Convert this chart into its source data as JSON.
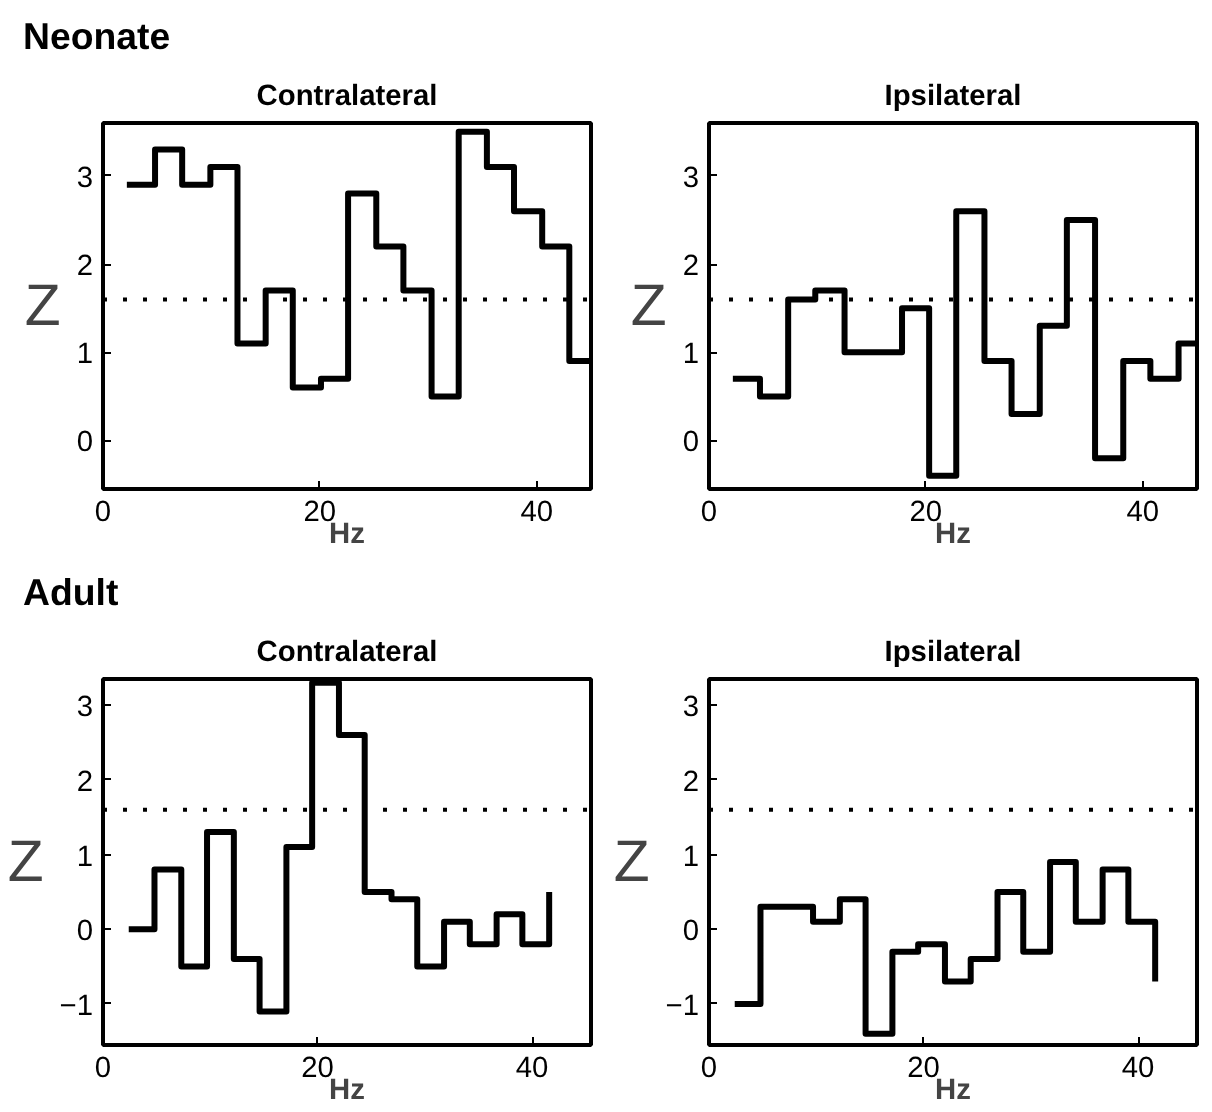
{
  "chart_data": [
    {
      "type": "step",
      "title": "Contralateral",
      "annotations": [
        "Neonate"
      ],
      "xlabel": "Hz",
      "ylabel": "Z",
      "xlim": [
        0,
        45
      ],
      "xticks": [
        0,
        20,
        40
      ],
      "ylim": [
        -0.55,
        3.6
      ],
      "yticks": [
        0,
        1,
        2,
        3
      ],
      "grid": false,
      "ref_lines": [
        {
          "axis": "y",
          "value": 1.6,
          "line_style": "dotted",
          "color": "#000000"
        }
      ],
      "series": [
        {
          "color": "#000000",
          "x": [
            2.2,
            4.8,
            7.3,
            9.9,
            12.4,
            15,
            17.5,
            20.1,
            22.6,
            25.2,
            27.7,
            30.3,
            32.8,
            35.4,
            37.9,
            40.5,
            43,
            45
          ],
          "values": [
            2.9,
            3.3,
            2.9,
            3.1,
            1.1,
            1.7,
            0.6,
            0.7,
            2.8,
            2.2,
            1.7,
            0.5,
            3.5,
            3.1,
            2.6,
            2.2,
            0.9,
            0.9
          ]
        }
      ]
    },
    {
      "type": "step",
      "title": "Ipsilateral",
      "xlabel": "Hz",
      "ylabel": "Z",
      "xlim": [
        0,
        45
      ],
      "xticks": [
        0,
        20,
        40
      ],
      "ylim": [
        -0.55,
        3.6
      ],
      "yticks": [
        0,
        1,
        2,
        3
      ],
      "grid": false,
      "ref_lines": [
        {
          "axis": "y",
          "value": 1.6,
          "line_style": "dotted",
          "color": "#000000"
        }
      ],
      "series": [
        {
          "color": "#000000",
          "x": [
            2.2,
            4.7,
            7.3,
            9.8,
            12.5,
            15,
            17.8,
            20.3,
            22.8,
            25.4,
            27.9,
            30.5,
            33,
            35.6,
            38.2,
            40.7,
            43.3,
            45
          ],
          "values": [
            0.7,
            0.5,
            1.6,
            1.7,
            1.0,
            1.0,
            1.5,
            -0.4,
            2.6,
            0.9,
            0.3,
            1.3,
            2.5,
            -0.2,
            0.9,
            0.7,
            1.1,
            1.1
          ]
        }
      ]
    },
    {
      "type": "step",
      "title": "Contralateral",
      "annotations": [
        "Adult"
      ],
      "xlabel": "Hz",
      "ylabel": "Z",
      "xlim": [
        0,
        45.5
      ],
      "xticks": [
        0,
        20,
        40
      ],
      "ylim": [
        -1.55,
        3.35
      ],
      "yticks": [
        -1,
        0,
        1,
        2,
        3
      ],
      "grid": false,
      "ref_lines": [
        {
          "axis": "y",
          "value": 1.6,
          "line_style": "dotted",
          "color": "#000000"
        }
      ],
      "series": [
        {
          "color": "#000000",
          "x": [
            2.4,
            4.8,
            7.3,
            9.7,
            12.2,
            14.6,
            17.1,
            19.5,
            22,
            24.4,
            26.9,
            29.3,
            31.8,
            34.2,
            36.7,
            39.1,
            41.6
          ],
          "values": [
            0.0,
            0.8,
            -0.5,
            1.3,
            -0.4,
            -1.1,
            1.1,
            3.3,
            2.6,
            0.5,
            0.4,
            -0.5,
            0.1,
            -0.2,
            0.2,
            -0.2,
            0.5
          ]
        }
      ]
    },
    {
      "type": "step",
      "title": "Ipsilateral",
      "xlabel": "Hz",
      "ylabel": "Z",
      "xlim": [
        0,
        45.5
      ],
      "xticks": [
        0,
        20,
        40
      ],
      "ylim": [
        -1.55,
        3.35
      ],
      "yticks": [
        -1,
        0,
        1,
        2,
        3
      ],
      "grid": false,
      "ref_lines": [
        {
          "axis": "y",
          "value": 1.6,
          "line_style": "dotted",
          "color": "#000000"
        }
      ],
      "series": [
        {
          "color": "#000000",
          "x": [
            2.4,
            4.8,
            7.3,
            9.7,
            12.2,
            14.6,
            17.1,
            19.5,
            22,
            24.4,
            26.9,
            29.3,
            31.8,
            34.2,
            36.7,
            39.1,
            41.6
          ],
          "values": [
            -1.0,
            0.3,
            0.3,
            0.1,
            0.4,
            -1.4,
            -0.3,
            -0.2,
            -0.7,
            -0.4,
            0.5,
            -0.3,
            0.9,
            0.1,
            0.8,
            0.1,
            -0.7
          ]
        }
      ]
    }
  ]
}
